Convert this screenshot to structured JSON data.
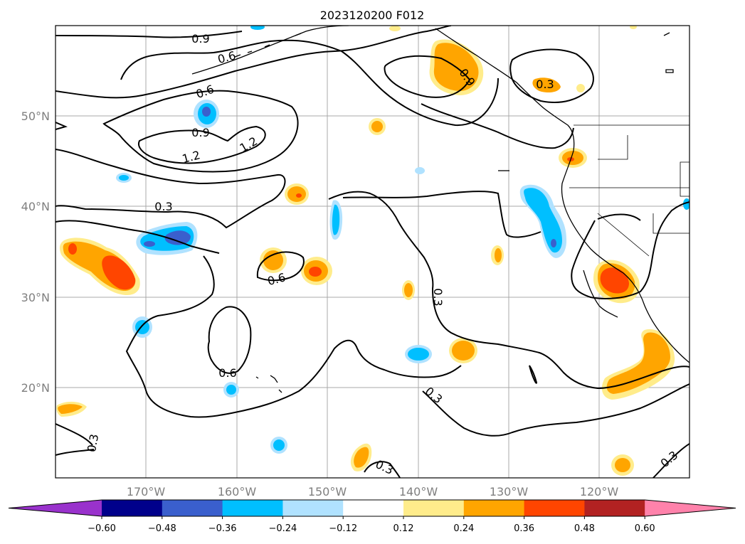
{
  "title": "2023120200 F012",
  "axes": {
    "lat_labels": [
      "50°N",
      "40°N",
      "30°N",
      "20°N"
    ],
    "lon_labels": [
      "170°W",
      "160°W",
      "150°W",
      "140°W",
      "130°W",
      "120°W"
    ]
  },
  "contour_labels": [
    "0.9",
    "0.6",
    "0.6",
    "0.9",
    "1.2",
    "1.2",
    "0.3",
    "0.6",
    "0.6",
    "0.9",
    "0.3",
    "0.3",
    "0.3",
    "0.3",
    "0.3",
    "0.3"
  ],
  "colorbar": {
    "ticks": [
      "−0.60",
      "−0.48",
      "−0.36",
      "−0.24",
      "−0.12",
      "0.12",
      "0.24",
      "0.36",
      "0.48",
      "0.60"
    ],
    "colors": [
      "#9932cc",
      "#00008b",
      "#3a5fcd",
      "#00bfff",
      "#b0e2ff",
      "#ffffff",
      "#ffec8b",
      "#ffa500",
      "#ff4500",
      "#b22222",
      "#ff82ab"
    ]
  }
}
